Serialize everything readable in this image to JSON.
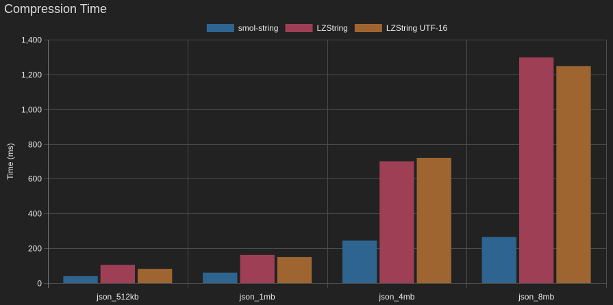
{
  "chart_data": {
    "type": "bar",
    "title": "Compression Time",
    "ylabel": "Time (ms)",
    "xlabel": "",
    "categories": [
      "json_512kb",
      "json_1mb",
      "json_4mb",
      "json_8mb"
    ],
    "series": [
      {
        "name": "smol-string",
        "color": "#2e6590",
        "values": [
          40,
          60,
          245,
          265
        ]
      },
      {
        "name": "LZString",
        "color": "#9e3f55",
        "values": [
          105,
          162,
          700,
          1298
        ]
      },
      {
        "name": "LZString UTF-16",
        "color": "#9e6530",
        "values": [
          82,
          150,
          720,
          1248
        ]
      }
    ],
    "ylim": [
      0,
      1400
    ],
    "yticks": [
      0,
      200,
      400,
      600,
      800,
      1000,
      1200,
      1400
    ],
    "ytick_labels": [
      "0",
      "200",
      "400",
      "600",
      "800",
      "1,000",
      "1,200",
      "1,400"
    ],
    "grid": true,
    "legend_position": "top"
  }
}
